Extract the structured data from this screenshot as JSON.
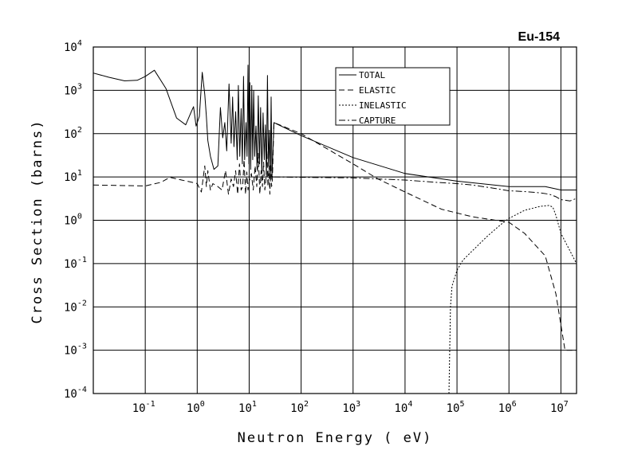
{
  "chart_data": {
    "type": "line",
    "title": "Eu-154",
    "xlabel": "Neutron Energy ( eV)",
    "ylabel": "Cross Section (barns)",
    "xscale": "log",
    "yscale": "log",
    "xlim": [
      0.01,
      20000000
    ],
    "ylim": [
      0.0001,
      10000
    ],
    "grid": true,
    "legend_position": "top-center",
    "x_ticks": [
      {
        "base": "10",
        "exp": "-1"
      },
      {
        "base": "10",
        "exp": "0"
      },
      {
        "base": "10",
        "exp": "1"
      },
      {
        "base": "10",
        "exp": "2"
      },
      {
        "base": "10",
        "exp": "3"
      },
      {
        "base": "10",
        "exp": "4"
      },
      {
        "base": "10",
        "exp": "5"
      },
      {
        "base": "10",
        "exp": "6"
      },
      {
        "base": "10",
        "exp": "7"
      }
    ],
    "y_ticks": [
      {
        "base": "10",
        "exp": "4"
      },
      {
        "base": "10",
        "exp": "3"
      },
      {
        "base": "10",
        "exp": "2"
      },
      {
        "base": "10",
        "exp": "1"
      },
      {
        "base": "10",
        "exp": "0"
      },
      {
        "base": "10",
        "exp": "-1"
      },
      {
        "base": "10",
        "exp": "-2"
      },
      {
        "base": "10",
        "exp": "-3"
      },
      {
        "base": "10",
        "exp": "-4"
      }
    ],
    "series": [
      {
        "name": "TOTAL",
        "style": "solid",
        "x": [
          0.01,
          0.02,
          0.04,
          0.07,
          0.1,
          0.15,
          0.25,
          0.4,
          0.6,
          0.75,
          0.85,
          0.95,
          1.1,
          1.25,
          1.4,
          1.5,
          1.6,
          1.8,
          2.1,
          2.5,
          2.8,
          3.1,
          3.4,
          3.7,
          4.1,
          4.5,
          4.8,
          5.1,
          5.5,
          5.9,
          6.2,
          6.6,
          7.0,
          7.4,
          7.8,
          8.2,
          8.7,
          9.1,
          9.5,
          9.9,
          10.3,
          10.7,
          11.2,
          11.7,
          12.2,
          12.8,
          13.5,
          14.2,
          15.0,
          15.8,
          16.6,
          17.5,
          18.5,
          19.5,
          20.5,
          21.5,
          22.5,
          23.5,
          24.5,
          25.5,
          26.5,
          27.5,
          30,
          100,
          1000,
          10000,
          100000,
          1000000,
          5000000,
          10000000,
          20000000
        ],
        "y": [
          2500,
          2000,
          1650,
          1700,
          2100,
          2900,
          1100,
          230,
          160,
          300,
          420,
          150,
          250,
          2600,
          800,
          250,
          70,
          30,
          15,
          18,
          400,
          80,
          180,
          40,
          1400,
          60,
          700,
          50,
          320,
          25,
          1300,
          30,
          380,
          20,
          2100,
          25,
          180,
          30,
          3800,
          20,
          1500,
          15,
          1300,
          25,
          1000,
          30,
          150,
          15,
          750,
          20,
          400,
          12,
          300,
          25,
          160,
          10,
          2200,
          18,
          120,
          8,
          700,
          10,
          180,
          90,
          28,
          12,
          8,
          6,
          6,
          5,
          5
        ]
      },
      {
        "name": "ELASTIC",
        "style": "dashed",
        "x": [
          0.01,
          0.1,
          0.2,
          0.3,
          0.5,
          0.8,
          1.0,
          1.2,
          1.4,
          1.5,
          1.6,
          1.8,
          2.0,
          2.5,
          3.0,
          3.5,
          4.0,
          4.5,
          5.0,
          5.5,
          6.0,
          6.5,
          7.0,
          7.5,
          8.0,
          8.5,
          9.0,
          9.5,
          10,
          11,
          12,
          13,
          14,
          15,
          16,
          17,
          18,
          19,
          20,
          21,
          22,
          23,
          24,
          25,
          26,
          27,
          28,
          30,
          100,
          1000,
          3000,
          10000,
          50000,
          200000,
          1000000,
          2000000,
          5000000,
          8000000,
          12000000,
          20000000
        ],
        "y": [
          6.5,
          6.2,
          7.5,
          9.8,
          8.5,
          7.5,
          7.0,
          4.5,
          18,
          6,
          14,
          5,
          7,
          6,
          5,
          14,
          4,
          9,
          6,
          14,
          4,
          20,
          5,
          6,
          25,
          4,
          13,
          5,
          8,
          12,
          5,
          18,
          6,
          35,
          4,
          14,
          6,
          22,
          5,
          9,
          40,
          6,
          18,
          4,
          20,
          6,
          9,
          180,
          100,
          20,
          9,
          4.5,
          1.8,
          1.2,
          0.9,
          0.5,
          0.15,
          0.02,
          0.001,
          0.001
        ]
      },
      {
        "name": "INELASTIC",
        "style": "dotted",
        "x": [
          70000,
          75000,
          80000,
          100000,
          130000,
          200000,
          400000,
          700000,
          1000000,
          2000000,
          4000000,
          6000000,
          7000000,
          8000000,
          10000000,
          20000000
        ],
        "y": [
          0.0001,
          0.01,
          0.03,
          0.07,
          0.12,
          0.2,
          0.45,
          0.8,
          1.1,
          1.7,
          2.1,
          2.2,
          2.0,
          1.3,
          0.5,
          0.1
        ]
      },
      {
        "name": "CAPTURE",
        "style": "dash-dot",
        "x": [
          30,
          100,
          1000,
          10000,
          40000,
          100000,
          200000,
          500000,
          1000000,
          2000000,
          4000000,
          6000000,
          8000000,
          10000000,
          15000000,
          20000000
        ],
        "y": [
          10,
          9.8,
          9.5,
          8.5,
          7.5,
          7.0,
          6.5,
          5.5,
          4.8,
          4.6,
          4.3,
          4.0,
          3.5,
          3.0,
          2.8,
          3.2
        ]
      }
    ]
  }
}
